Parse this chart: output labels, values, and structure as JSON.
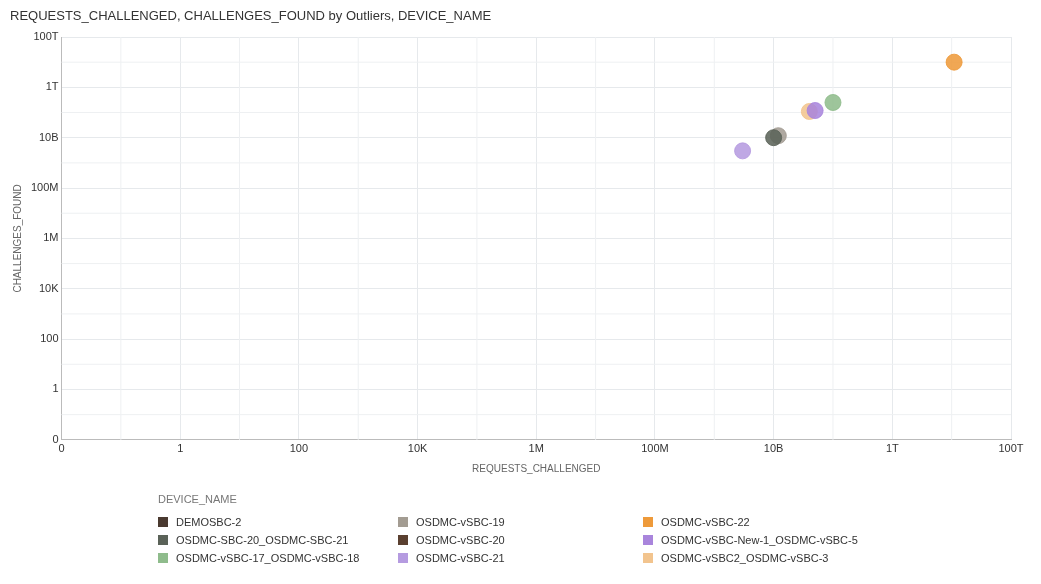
{
  "chart_data": {
    "type": "scatter",
    "title": "REQUESTS_CHALLENGED, CHALLENGES_FOUND by Outliers, DEVICE_NAME",
    "xlabel": "REQUESTS_CHALLENGED",
    "ylabel": "CHALLENGES_FOUND",
    "legend_title": "DEVICE_NAME",
    "log": "xy",
    "grid": true,
    "legend": "bottom",
    "marker": "circle",
    "xlim": [
      0,
      100000000000000
    ],
    "ylim": [
      0,
      100000000000000
    ],
    "xticks": [
      0,
      1,
      100,
      {
        "value": 10000,
        "label": "10K"
      },
      {
        "value": 1000000,
        "label": "1M"
      },
      {
        "value": 100000000,
        "label": "100M"
      },
      {
        "value": 10000000000,
        "label": "10B"
      },
      {
        "value": 1000000000000,
        "label": "1T"
      },
      {
        "value": 100000000000000,
        "label": "100T"
      }
    ],
    "yticks": [
      0,
      1,
      100,
      {
        "value": 10000,
        "label": "10K"
      },
      {
        "value": 1000000,
        "label": "1M"
      },
      {
        "value": 100000000,
        "label": "100M"
      },
      {
        "value": 10000000000,
        "label": "10B"
      },
      {
        "value": 1000000000000,
        "label": "1T"
      },
      {
        "value": 100000000000000,
        "label": "100T"
      }
    ],
    "series": [
      {
        "name": "DEMOSBC-2",
        "color": "#4a3a30",
        "x": [
          null
        ],
        "values": [
          null
        ]
      },
      {
        "name": "OSDMC-SBC-20_OSDMC-SBC-21",
        "color": "#5a6258",
        "x": [
          10000000000
        ],
        "values": [
          10000000000
        ]
      },
      {
        "name": "OSDMC-vSBC-17_OSDMC-vSBC-18",
        "color": "#8fbc8c",
        "x": [
          100000000000
        ],
        "values": [
          250000000000
        ]
      },
      {
        "name": "OSDMC-vSBC-19",
        "color": "#a39c92",
        "x": [
          12000000000
        ],
        "values": [
          12000000000
        ]
      },
      {
        "name": "OSDMC-vSBC-20",
        "color": "#5a4030",
        "x": [
          null
        ],
        "values": [
          null
        ]
      },
      {
        "name": "OSDMC-vSBC-21",
        "color": "#b59be0",
        "x": [
          3000000000
        ],
        "values": [
          3000000000
        ]
      },
      {
        "name": "OSDMC-vSBC-22",
        "color": "#ee9a3a",
        "x": [
          11000000000000
        ],
        "values": [
          10000000000000
        ]
      },
      {
        "name": "OSDMC-vSBC-New-1_OSDMC-vSBC-5",
        "color": "#a985dc",
        "x": [
          50000000000
        ],
        "values": [
          120000000000
        ]
      },
      {
        "name": "OSDMC-vSBC2_OSDMC-vSBC-3",
        "color": "#f2c48e",
        "x": [
          40000000000
        ],
        "values": [
          110000000000
        ]
      }
    ]
  }
}
